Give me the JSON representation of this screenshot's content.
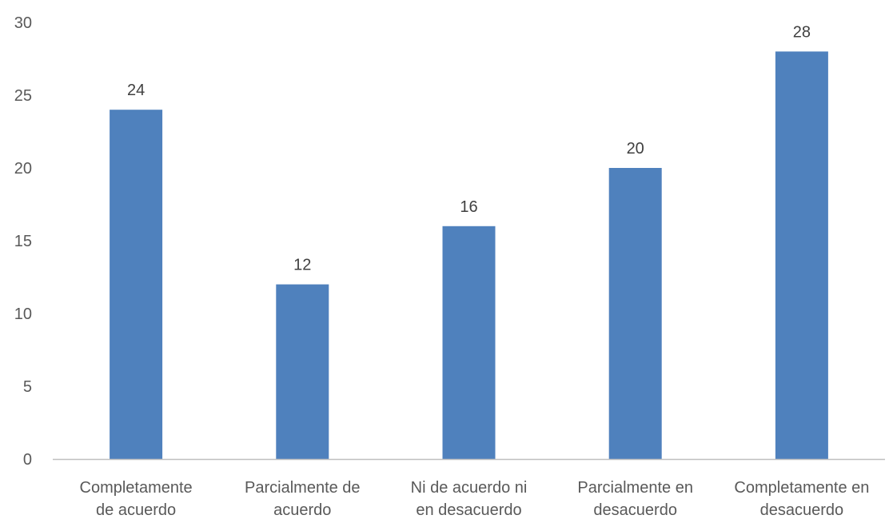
{
  "chart_data": {
    "type": "bar",
    "categories": [
      [
        "Completamente",
        "de acuerdo"
      ],
      [
        "Parcialmente de",
        "acuerdo"
      ],
      [
        "Ni de acuerdo ni",
        "en desacuerdo"
      ],
      [
        "Parcialmente en",
        "desacuerdo"
      ],
      [
        "Completamente en",
        "desacuerdo"
      ]
    ],
    "values": [
      24,
      12,
      16,
      20,
      28
    ],
    "data_labels": [
      "24",
      "12",
      "16",
      "20",
      "28"
    ],
    "ylim": [
      0,
      30
    ],
    "yticks": [
      0,
      5,
      10,
      15,
      20,
      25,
      30
    ],
    "ytick_labels": [
      "0",
      "5",
      "10",
      "15",
      "20",
      "25",
      "30"
    ],
    "grid": false,
    "legend": "none",
    "title": "",
    "xlabel": "",
    "ylabel": "",
    "colors": {
      "bar": "#4F81BD",
      "axis": "#BFBFBF"
    }
  }
}
